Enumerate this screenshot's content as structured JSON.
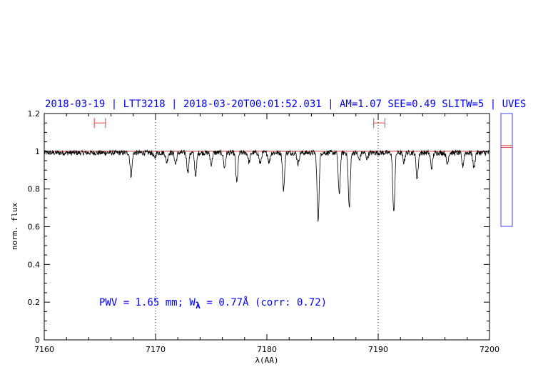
{
  "title": "2018-03-19 | LTT3218 | 2018-03-20T00:01:52.031 | AM=1.07  SEE=0.49  SLITW=5 | UVES",
  "annotation": {
    "prefix": "PWV = 1.65 mm; W",
    "subscript": "λ",
    "suffix": " = 0.77Å (corr: 0.72)"
  },
  "colors": {
    "title": "#0000ff",
    "spectrum": "#000000",
    "continuum": "#d03030",
    "fit_ranges": "#e04040",
    "annotation": "#0000ff",
    "side_panel": "#4040ff",
    "side_panel_marker": "#e04040"
  },
  "chart_data": {
    "type": "line",
    "xlabel": "λ(AA)",
    "ylabel": "norm. flux",
    "xlim": [
      7160,
      7200
    ],
    "ylim": [
      0,
      1.2
    ],
    "xticks": [
      "7160",
      "7170",
      "7180",
      "7190",
      "7200"
    ],
    "yticks": [
      "0",
      "0.2",
      "0.4",
      "0.6",
      "0.8",
      "1",
      "1.2"
    ],
    "grid": false,
    "vertical_dotted_lines_x": [
      7170,
      7190
    ],
    "continuum_level": 1.0,
    "fit_ranges": [
      {
        "x": [
          7164.5,
          7165.5
        ],
        "y": 1.15
      },
      {
        "x": [
          7189.6,
          7190.6
        ],
        "y": 1.15
      }
    ],
    "absorption_lines": [
      {
        "x": 7167.8,
        "depth": 0.12
      },
      {
        "x": 7169.9,
        "depth": 0.03
      },
      {
        "x": 7171.0,
        "depth": 0.05
      },
      {
        "x": 7171.8,
        "depth": 0.06
      },
      {
        "x": 7172.9,
        "depth": 0.1
      },
      {
        "x": 7173.6,
        "depth": 0.12
      },
      {
        "x": 7175.0,
        "depth": 0.06
      },
      {
        "x": 7176.2,
        "depth": 0.08
      },
      {
        "x": 7177.3,
        "depth": 0.16
      },
      {
        "x": 7178.4,
        "depth": 0.05
      },
      {
        "x": 7179.4,
        "depth": 0.06
      },
      {
        "x": 7180.2,
        "depth": 0.05
      },
      {
        "x": 7181.5,
        "depth": 0.2
      },
      {
        "x": 7182.8,
        "depth": 0.06
      },
      {
        "x": 7184.6,
        "depth": 0.36
      },
      {
        "x": 7186.5,
        "depth": 0.22
      },
      {
        "x": 7187.4,
        "depth": 0.29
      },
      {
        "x": 7188.3,
        "depth": 0.04
      },
      {
        "x": 7189.0,
        "depth": 0.03
      },
      {
        "x": 7191.4,
        "depth": 0.32
      },
      {
        "x": 7192.3,
        "depth": 0.05
      },
      {
        "x": 7193.5,
        "depth": 0.14
      },
      {
        "x": 7194.8,
        "depth": 0.08
      },
      {
        "x": 7196.2,
        "depth": 0.06
      },
      {
        "x": 7197.6,
        "depth": 0.07
      },
      {
        "x": 7198.6,
        "depth": 0.08
      }
    ],
    "side_panel": {
      "ylim": [
        0.6,
        1.2
      ],
      "marker_values": [
        1.02,
        1.03
      ]
    }
  }
}
